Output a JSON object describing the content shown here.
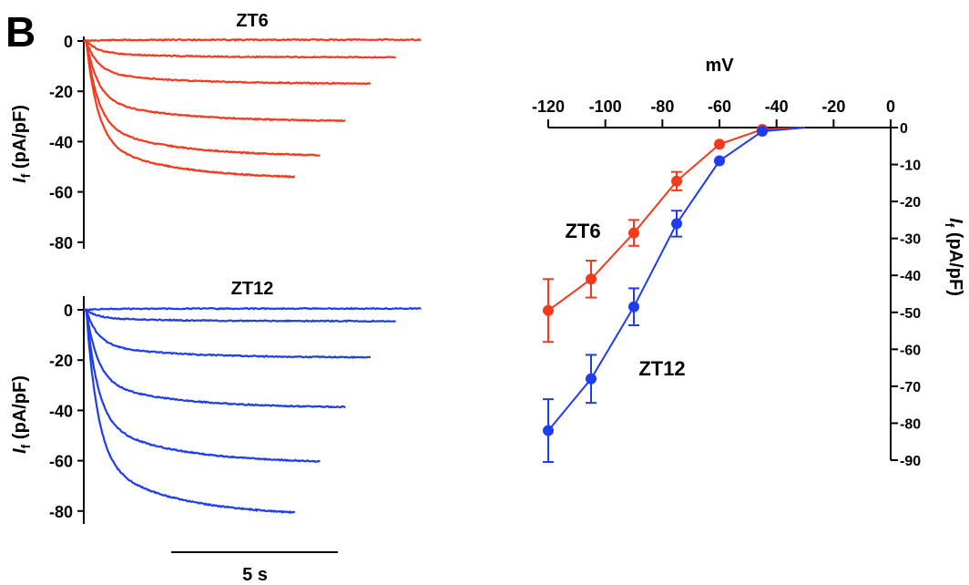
{
  "panel_label": "B",
  "colors": {
    "zt6": "#f5391d",
    "zt12": "#1f3cf0",
    "axis": "#000000"
  },
  "chart_data": [
    {
      "type": "line",
      "title": "ZT6",
      "ylabel_main": "I",
      "ylabel_sub": "f",
      "ylabel_unit": "(pA/pF)",
      "yticks": [
        0,
        -20,
        -40,
        -60,
        -80
      ],
      "ylim": [
        -82,
        2
      ],
      "xlim": [
        0,
        5.35
      ],
      "color": "#f5391d",
      "series": [
        {
          "x_end": 5.35,
          "plateau": 0.5,
          "ss": 0.5
        },
        {
          "x_end": 4.95,
          "plateau": -6.5,
          "ss": -6.5
        },
        {
          "x_end": 4.55,
          "plateau": -17,
          "ss": -17
        },
        {
          "x_end": 4.15,
          "plateau": -32,
          "ss": -32
        },
        {
          "x_end": 3.75,
          "plateau": -46,
          "ss": -46
        },
        {
          "x_end": 3.35,
          "plateau": -55,
          "ss": -55
        }
      ]
    },
    {
      "type": "line",
      "title": "ZT12",
      "ylabel_main": "I",
      "ylabel_sub": "f",
      "ylabel_unit": "(pA/pF)",
      "yticks": [
        0,
        -20,
        -40,
        -60,
        -80
      ],
      "ylim": [
        -82,
        2
      ],
      "xlim": [
        0,
        5.35
      ],
      "color": "#1f3cf0",
      "series": [
        {
          "x_end": 5.35,
          "plateau": 0.5,
          "ss": 0.5
        },
        {
          "x_end": 4.95,
          "plateau": -4.5,
          "ss": -4.5
        },
        {
          "x_end": 4.55,
          "plateau": -19,
          "ss": -19
        },
        {
          "x_end": 4.15,
          "plateau": -39,
          "ss": -39
        },
        {
          "x_end": 3.75,
          "plateau": -61,
          "ss": -61
        },
        {
          "x_end": 3.35,
          "plateau": -82,
          "ss": -82
        }
      ]
    },
    {
      "type": "line",
      "xlabel": "mV",
      "ylabel_main": "I",
      "ylabel_sub": "f",
      "ylabel_unit": "(pA/pF)",
      "xticks": [
        -120,
        -100,
        -80,
        -60,
        -40,
        -20,
        0
      ],
      "yticks": [
        0,
        -10,
        -20,
        -30,
        -40,
        -50,
        -60,
        -70,
        -80,
        -90
      ],
      "xlim": [
        -120,
        0
      ],
      "ylim": [
        -90,
        0
      ],
      "series": [
        {
          "name": "ZT6",
          "color": "#f5391d",
          "x": [
            -120,
            -105,
            -90,
            -75,
            -60,
            -45,
            -30
          ],
          "y": [
            -49.5,
            -41,
            -28.5,
            -14.5,
            -4.5,
            -0.5,
            0
          ],
          "err": [
            8.5,
            5,
            3.5,
            2.5,
            0,
            0,
            0
          ]
        },
        {
          "name": "ZT12",
          "color": "#1f3cf0",
          "x": [
            -120,
            -105,
            -90,
            -75,
            -60,
            -45,
            -30
          ],
          "y": [
            -82,
            -68,
            -48.5,
            -26,
            -9,
            -1,
            0
          ],
          "err": [
            8.5,
            6.5,
            5,
            3.5,
            0,
            0,
            0
          ]
        }
      ]
    }
  ],
  "scale_bar_label": "5 s"
}
